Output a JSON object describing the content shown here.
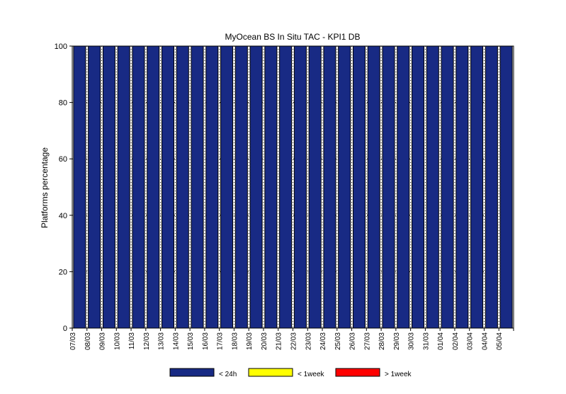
{
  "chart_data": {
    "type": "bar",
    "title": "MyOcean  BS In Situ TAC - KPI1  DB",
    "xlabel": "",
    "ylabel": "Platforms percentage",
    "ylim": [
      0,
      100
    ],
    "yticks": [
      0,
      20,
      40,
      60,
      80,
      100
    ],
    "stacked": true,
    "grid": true,
    "legend_position": "bottom",
    "categories": [
      "07/03",
      "08/03",
      "09/03",
      "10/03",
      "11/03",
      "12/03",
      "13/03",
      "14/03",
      "15/03",
      "16/03",
      "17/03",
      "18/03",
      "19/03",
      "20/03",
      "21/03",
      "22/03",
      "23/03",
      "24/03",
      "25/03",
      "26/03",
      "27/03",
      "28/03",
      "29/03",
      "30/03",
      "31/03",
      "01/04",
      "02/04",
      "03/04",
      "04/04",
      "05/04"
    ],
    "series": [
      {
        "name": "< 24h",
        "color": "#182a84",
        "values": [
          100,
          100,
          100,
          100,
          100,
          100,
          100,
          100,
          100,
          100,
          100,
          100,
          100,
          100,
          100,
          100,
          100,
          100,
          100,
          100,
          100,
          100,
          100,
          100,
          100,
          100,
          100,
          100,
          100,
          100
        ]
      },
      {
        "name": "< 1week",
        "color": "#ffff00",
        "values": [
          0,
          0,
          0,
          0,
          0,
          0,
          0,
          0,
          0,
          0,
          0,
          0,
          0,
          0,
          0,
          0,
          0,
          0,
          0,
          0,
          0,
          0,
          0,
          0,
          0,
          0,
          0,
          0,
          0,
          0
        ]
      },
      {
        "name": "> 1week",
        "color": "#ff0000",
        "values": [
          0,
          0,
          0,
          0,
          0,
          0,
          0,
          0,
          0,
          0,
          0,
          0,
          0,
          0,
          0,
          0,
          0,
          0,
          0,
          0,
          0,
          0,
          0,
          0,
          0,
          0,
          0,
          0,
          0,
          0
        ]
      }
    ]
  }
}
